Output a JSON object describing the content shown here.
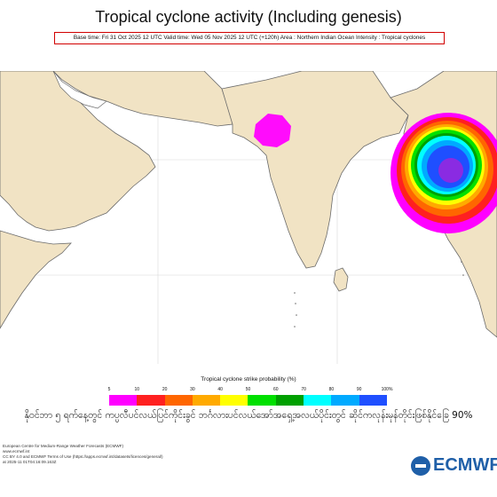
{
  "title": "Tropical cyclone activity (Including genesis)",
  "info": "Base time: Fri 31 Oct 2025 12 UTC Valid time: Wed 05 Nov 2025 12 UTC (+120h) Area : Northern Indian Ocean Intensity : Tropical cyclones",
  "legend": {
    "title": "Tropical cyclone strike probability (%)",
    "ticks": [
      "5",
      "10",
      "20",
      "30",
      "40",
      "50",
      "60",
      "70",
      "80",
      "90",
      "100%"
    ],
    "colors": [
      "#ff00ff",
      "#ff2020",
      "#ff6600",
      "#ffaa00",
      "#ffff00",
      "#00e000",
      "#00a000",
      "#00ffff",
      "#00aaff",
      "#1f4fff",
      "#8a2be2"
    ]
  },
  "caption": "နိုဝင်ဘာ ၅ ရက်နေ့တွင် ကပ္ပလီပင်လယ်ပြင်ကိုင်းခွင် ဘင်္ဂလားပင်လယ်အော်အရှေ့အလယ်ပိုင်းတွင် ဆိုင်ကလုန်းမုန်တိုင်းဖြစ်နိုင်ခြေ 90%",
  "footer": [
    "European Centre for Medium-Range Weather Forecasts (ECMWF)",
    "www.ecmwf.int",
    "CC BY 4.0 and ECMWF Terms of Use (https://apps.ecmwf.int/datasets/licences/general/)",
    "at 2025-11 01T04:16:09.163Z"
  ],
  "logo": "ECMWF",
  "colors": {
    "land": "#f1e3c4",
    "ocean": "#ffffff",
    "border": "#c9b58f",
    "coast": "#6b6b6b",
    "title_box": "#d10000"
  }
}
